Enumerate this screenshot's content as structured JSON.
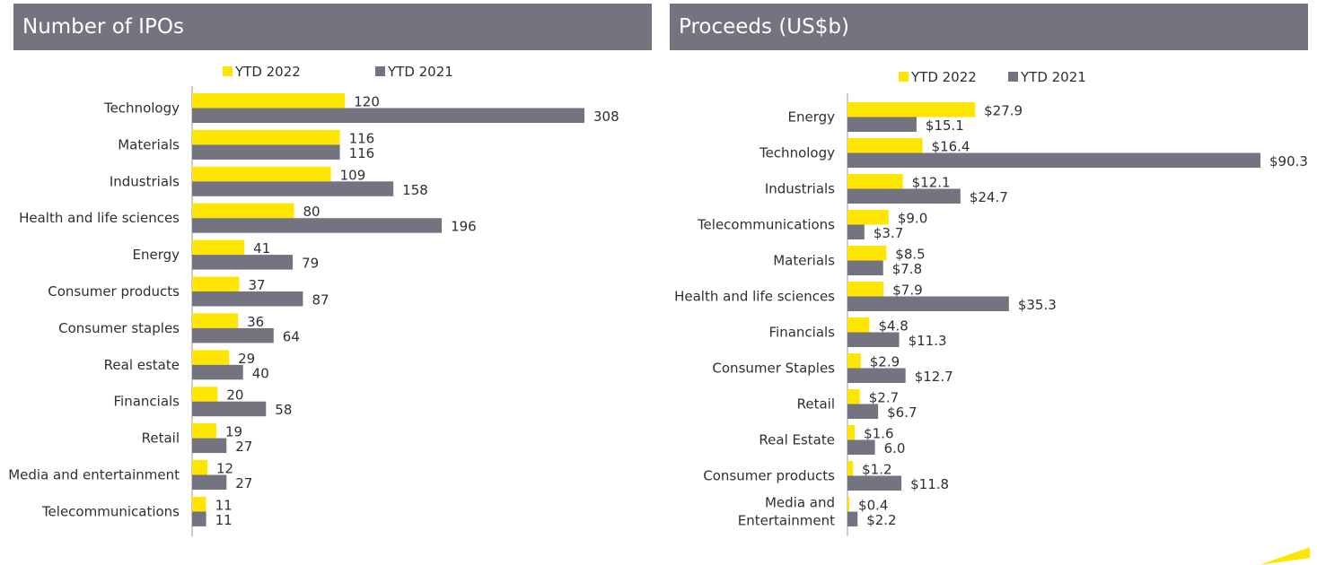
{
  "colors": {
    "ytd_2022": "#ffe600",
    "ytd_2021": "#747480",
    "header_bg": "#747480",
    "axis": "#9a9aa2"
  },
  "chart_data": [
    {
      "type": "bar",
      "orientation": "horizontal",
      "title": "Number of IPOs",
      "legend_position": "top",
      "grid": false,
      "categories": [
        "Technology",
        "Materials",
        "Industrials",
        "Health and life sciences",
        "Energy",
        "Consumer products",
        "Consumer staples",
        "Real estate",
        "Financials",
        "Retail",
        "Media and entertainment",
        "Telecommunications"
      ],
      "series": [
        {
          "name": "YTD 2022",
          "values": [
            120,
            116,
            109,
            80,
            41,
            37,
            36,
            29,
            20,
            19,
            12,
            11
          ],
          "labels": [
            "120",
            "116",
            "109",
            "80",
            "41",
            "37",
            "36",
            "29",
            "20",
            "19",
            "12",
            "11"
          ]
        },
        {
          "name": "YTD 2021",
          "values": [
            308,
            116,
            158,
            196,
            79,
            87,
            64,
            40,
            58,
            27,
            27,
            11
          ],
          "labels": [
            "308",
            "116",
            "158",
            "196",
            "79",
            "87",
            "64",
            "40",
            "58",
            "27",
            "27",
            "11"
          ]
        }
      ],
      "xlim": [
        0,
        308
      ]
    },
    {
      "type": "bar",
      "orientation": "horizontal",
      "title": "Proceeds (US$b)",
      "legend_position": "top",
      "grid": false,
      "categories": [
        "Energy",
        "Technology",
        "Industrials",
        "Telecommunications",
        "Materials",
        "Health and life sciences",
        "Financials",
        "Consumer Staples",
        "Retail",
        "Real Estate",
        "Consumer products",
        "Media and Entertainment"
      ],
      "category_lines": [
        [
          "Energy"
        ],
        [
          "Technology"
        ],
        [
          "Industrials"
        ],
        [
          "Telecommunications"
        ],
        [
          "Materials"
        ],
        [
          "Health and life sciences"
        ],
        [
          "Financials"
        ],
        [
          "Consumer Staples"
        ],
        [
          "Retail"
        ],
        [
          "Real Estate"
        ],
        [
          "Consumer products"
        ],
        [
          "Media and",
          "Entertainment"
        ]
      ],
      "series": [
        {
          "name": "YTD 2022",
          "values": [
            27.9,
            16.4,
            12.1,
            9.0,
            8.5,
            7.9,
            4.8,
            2.9,
            2.7,
            1.6,
            1.2,
            0.4
          ],
          "labels": [
            "$27.9",
            "$16.4",
            "$12.1",
            "$9.0",
            "$8.5",
            "$7.9",
            "$4.8",
            "$2.9",
            "$2.7",
            "$1.6",
            "$1.2",
            "$0.4"
          ]
        },
        {
          "name": "YTD 2021",
          "values": [
            15.1,
            90.3,
            24.7,
            3.7,
            7.8,
            35.3,
            11.3,
            12.7,
            6.7,
            6.0,
            11.8,
            2.2
          ],
          "labels": [
            "$15.1",
            "$90.3",
            "$24.7",
            "$3.7",
            "$7.8",
            "$35.3",
            "$11.3",
            "$12.7",
            "$6.7",
            "6.0",
            "$11.8",
            "$2.2"
          ]
        }
      ],
      "xlim": [
        0,
        90.3
      ]
    }
  ]
}
